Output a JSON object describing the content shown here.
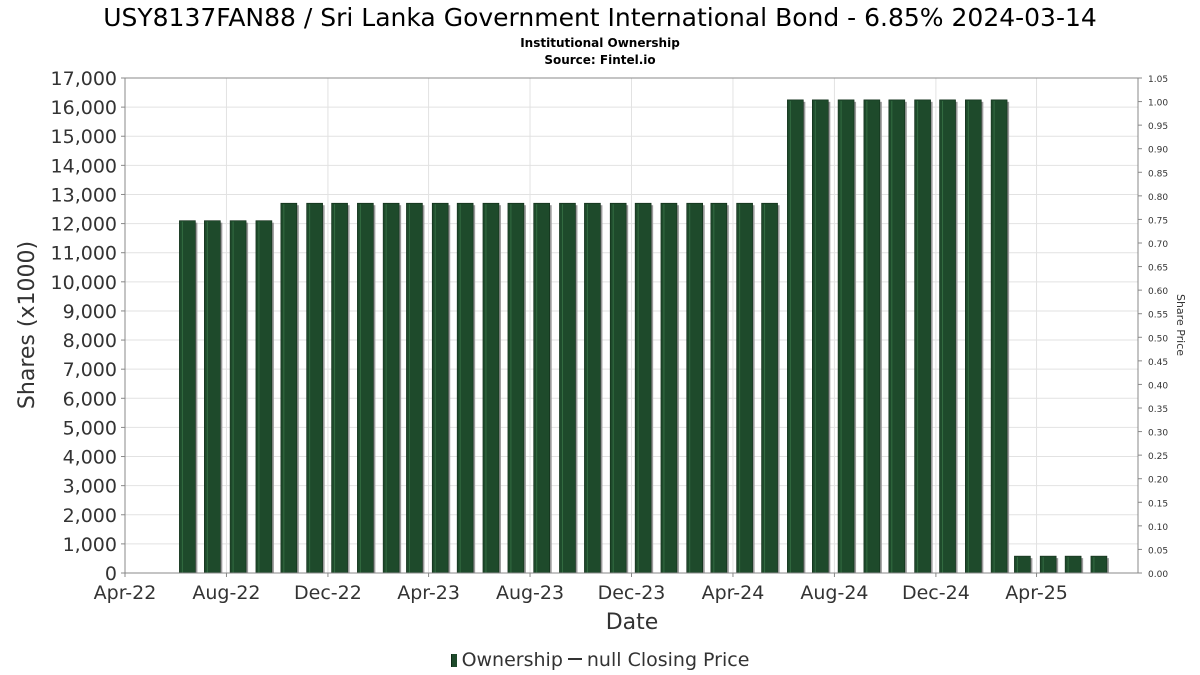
{
  "chart_data": {
    "type": "bar",
    "title": "USY8137FAN88 / Sri Lanka Government International Bond - 6.85% 2024-03-14",
    "subtitle": "Institutional Ownership",
    "source": "Source: Fintel.io",
    "xlabel": "Date",
    "ylabel": "Shares (x1000)",
    "y2label": "Share Price",
    "x_ticks": [
      "Apr-22",
      "Aug-22",
      "Dec-22",
      "Apr-23",
      "Aug-23",
      "Dec-23",
      "Apr-24",
      "Aug-24",
      "Dec-24",
      "Apr-25"
    ],
    "y_ticks": [
      "0",
      "1,000",
      "2,000",
      "3,000",
      "4,000",
      "5,000",
      "6,000",
      "7,000",
      "8,000",
      "9,000",
      "10,000",
      "11,000",
      "12,000",
      "13,000",
      "14,000",
      "15,000",
      "16,000",
      "17,000"
    ],
    "y2_ticks": [
      "0.00",
      "0.05",
      "0.10",
      "0.15",
      "0.20",
      "0.25",
      "0.30",
      "0.35",
      "0.40",
      "0.45",
      "0.50",
      "0.55",
      "0.60",
      "0.65",
      "0.70",
      "0.75",
      "0.80",
      "0.85",
      "0.90",
      "0.95",
      "1.00",
      "1.05"
    ],
    "ylim": [
      0,
      17000
    ],
    "y2lim": [
      0,
      1.05
    ],
    "xlim": [
      "2022-04-01",
      "2025-08-01"
    ],
    "grid": true,
    "legend_position": "bottom",
    "series": [
      {
        "name": "Ownership",
        "color": "#1e4a2b",
        "x": [
          "2022-06-15",
          "2022-07-15",
          "2022-08-15",
          "2022-09-15",
          "2022-10-15",
          "2022-11-15",
          "2022-12-15",
          "2023-01-15",
          "2023-02-15",
          "2023-03-15",
          "2023-04-15",
          "2023-05-15",
          "2023-06-15",
          "2023-07-15",
          "2023-08-15",
          "2023-09-15",
          "2023-10-15",
          "2023-11-15",
          "2023-12-15",
          "2024-01-15",
          "2024-02-15",
          "2024-03-15",
          "2024-04-15",
          "2024-05-15",
          "2024-06-15",
          "2024-07-15",
          "2024-08-15",
          "2024-09-15",
          "2024-10-15",
          "2024-11-15",
          "2024-12-15",
          "2025-01-15",
          "2025-02-15",
          "2025-03-15",
          "2025-04-15",
          "2025-05-15",
          "2025-06-15"
        ],
        "values": [
          12100,
          12100,
          12100,
          12100,
          12700,
          12700,
          12700,
          12700,
          12700,
          12700,
          12700,
          12700,
          12700,
          12700,
          12700,
          12700,
          12700,
          12700,
          12700,
          12700,
          12700,
          12700,
          12700,
          12700,
          16250,
          16250,
          16250,
          16250,
          16250,
          16250,
          16250,
          16250,
          16250,
          580,
          580,
          580,
          580
        ]
      },
      {
        "name": "null Closing Price",
        "color": "#333333",
        "values": []
      }
    ]
  },
  "legend": {
    "ownership_label": "Ownership",
    "price_label": "null Closing Price"
  }
}
